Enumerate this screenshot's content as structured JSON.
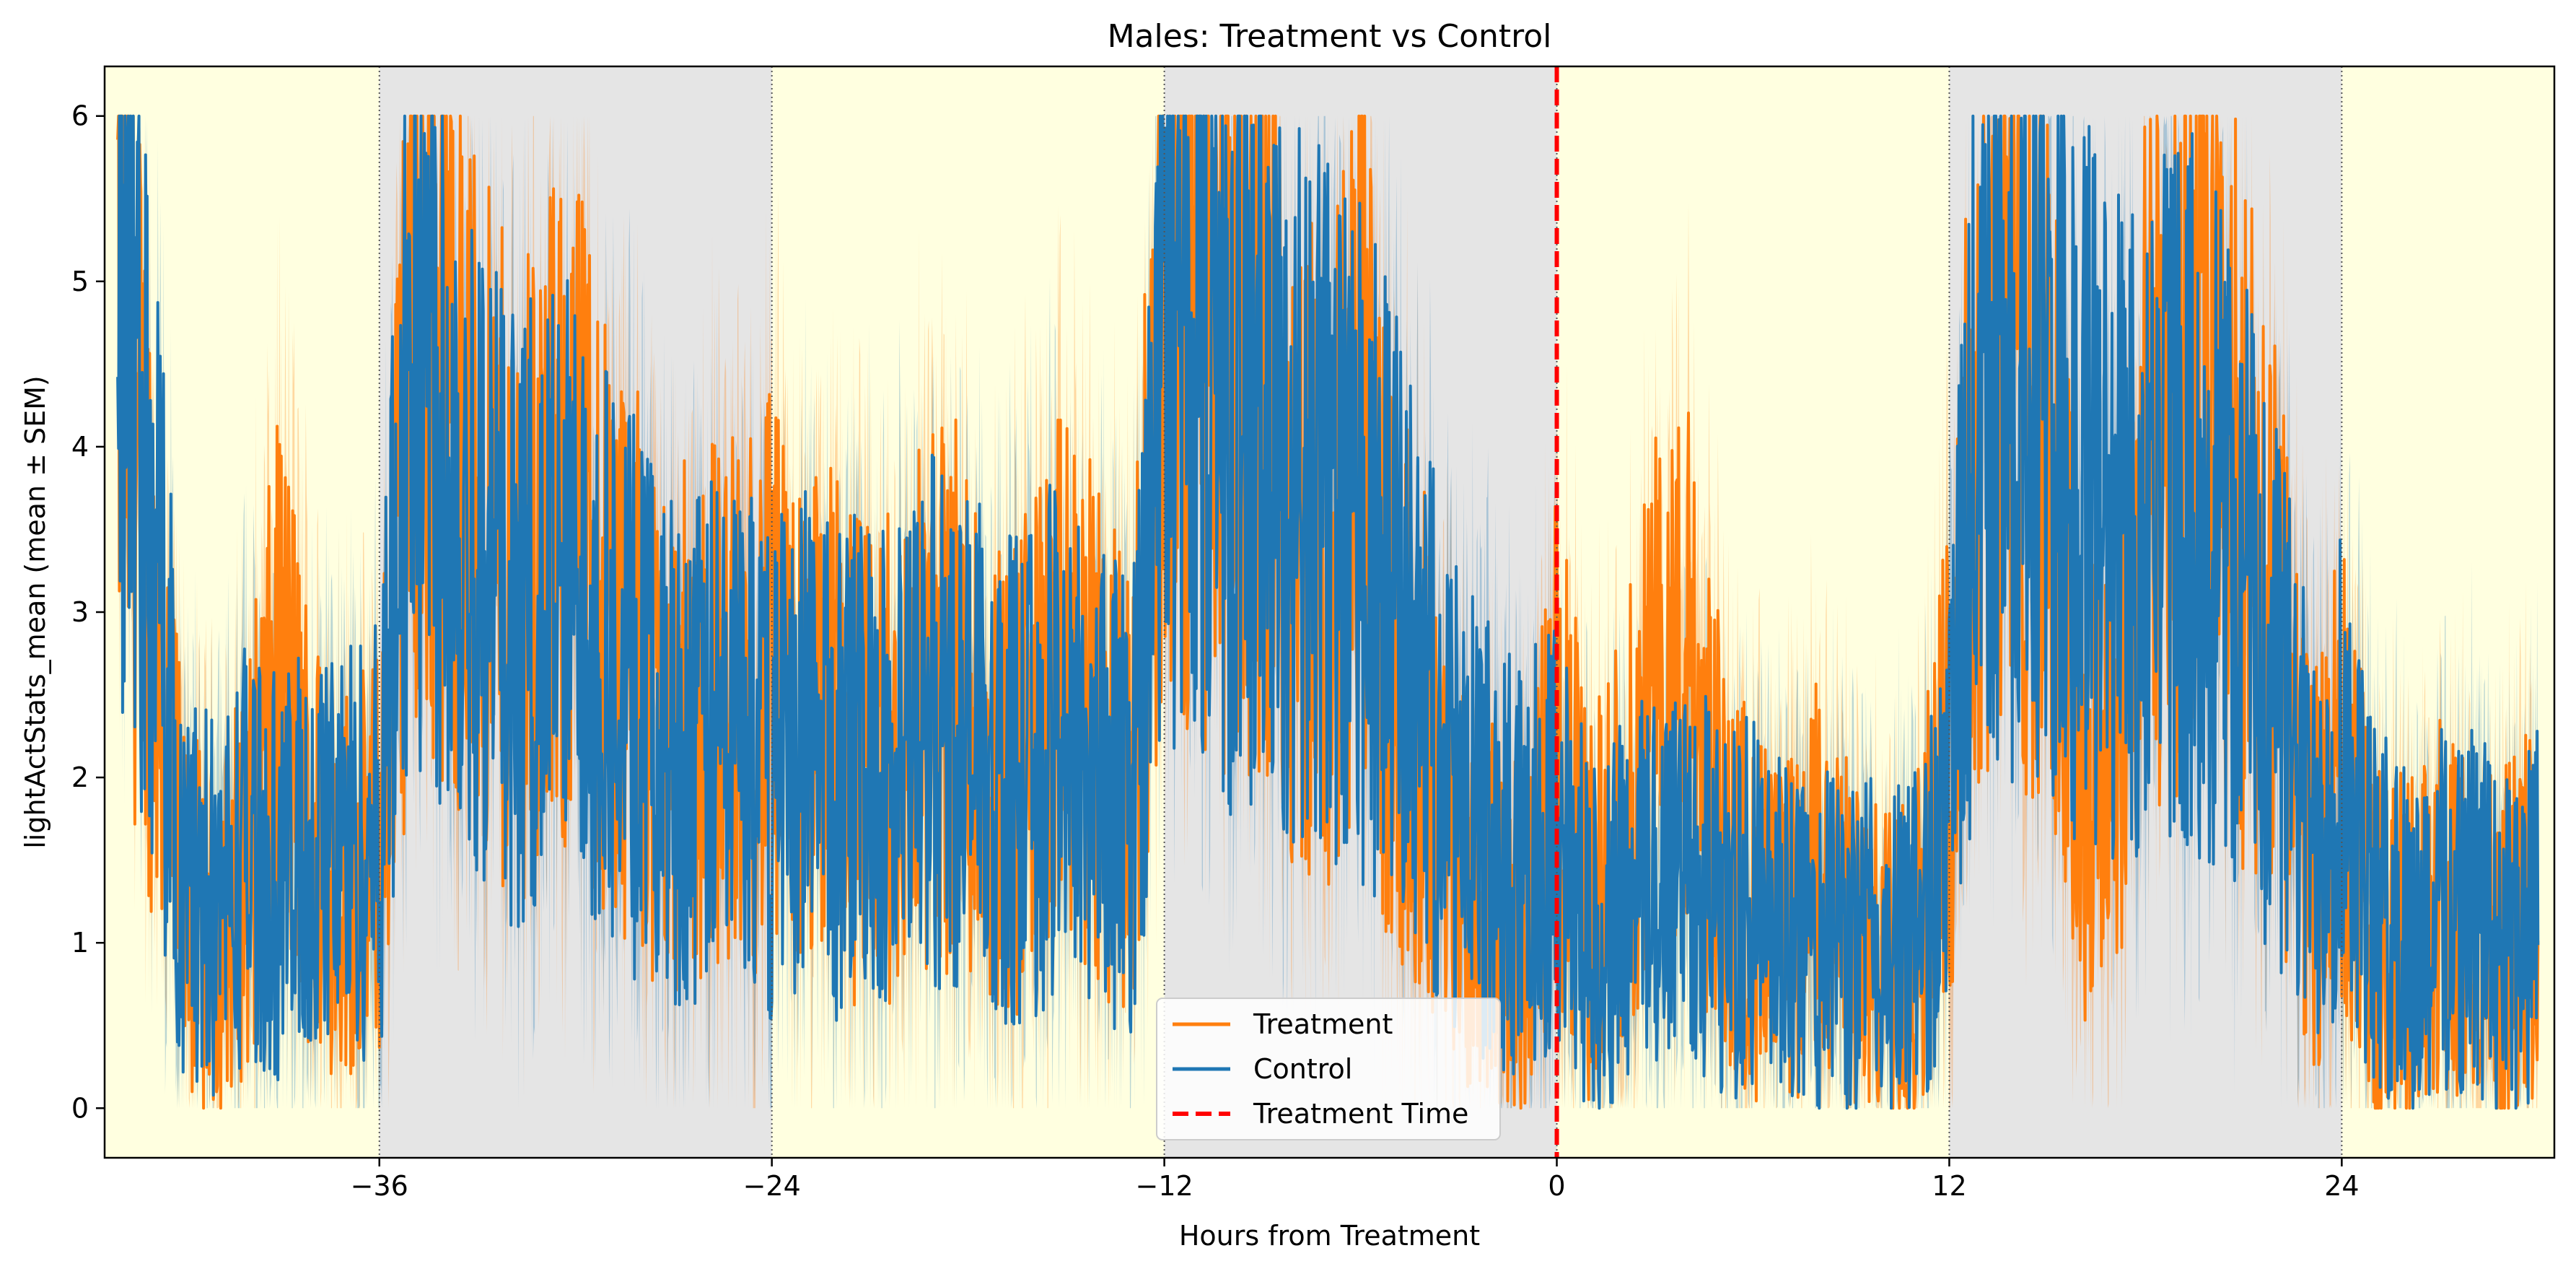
{
  "chart_data": {
    "type": "line",
    "title": "Males: Treatment vs Control",
    "xlabel": "Hours from Treatment",
    "ylabel": "lightActStats_mean (mean ± SEM)",
    "xlim": [
      -44.4,
      30.5
    ],
    "ylim": [
      -0.3,
      6.3
    ],
    "xticks": [
      -36,
      -24,
      -12,
      0,
      12,
      24
    ],
    "yticks": [
      0,
      1,
      2,
      3,
      4,
      5,
      6
    ],
    "grid": false,
    "legend_position": "lower center",
    "light_dark_periods": [
      {
        "start": -44.4,
        "end": -36,
        "phase": "light"
      },
      {
        "start": -36,
        "end": -24,
        "phase": "dark"
      },
      {
        "start": -24,
        "end": -12,
        "phase": "light"
      },
      {
        "start": -12,
        "end": 0,
        "phase": "dark"
      },
      {
        "start": 0,
        "end": 12,
        "phase": "light"
      },
      {
        "start": 12,
        "end": 24,
        "phase": "dark"
      },
      {
        "start": 24,
        "end": 30.5,
        "phase": "light"
      }
    ],
    "colors": {
      "light_period": "#ffffe0",
      "dark_period": "#e5e5e5",
      "treatment": "#ff7f0e",
      "control": "#1f77b4",
      "treatment_time": "#ff0000"
    },
    "treatment_time": 0,
    "series": [
      {
        "name": "Treatment",
        "color": "#ff7f0e",
        "x": [
          -44,
          -43,
          -42,
          -41,
          -40,
          -39,
          -38,
          -37,
          -36,
          -35,
          -34,
          -33,
          -32,
          -31,
          -30,
          -29,
          -28,
          -27,
          -26,
          -25,
          -24,
          -23,
          -22,
          -21,
          -20,
          -19,
          -18,
          -17,
          -16,
          -15,
          -14,
          -13,
          -12,
          -11,
          -10,
          -9,
          -8,
          -7,
          -6,
          -5,
          -4,
          -3,
          -2,
          -1,
          0,
          1,
          2,
          3,
          4,
          5,
          6,
          7,
          8,
          9,
          10,
          11,
          12,
          13,
          14,
          15,
          16,
          17,
          18,
          19,
          20,
          21,
          22,
          23,
          24,
          25,
          26,
          27,
          28,
          29,
          30
        ],
        "y": [
          5.0,
          3.2,
          1.2,
          1.0,
          1.5,
          2.6,
          1.6,
          1.4,
          1.5,
          4.8,
          4.5,
          3.6,
          3.2,
          3.4,
          3.6,
          3.0,
          2.6,
          2.2,
          2.5,
          2.4,
          2.6,
          2.2,
          2.4,
          2.0,
          2.2,
          2.6,
          2.4,
          2.0,
          2.2,
          2.6,
          2.2,
          1.9,
          5.0,
          5.0,
          4.4,
          4.6,
          3.6,
          3.2,
          4.2,
          2.6,
          2.2,
          1.4,
          1.2,
          1.0,
          2.2,
          1.2,
          1.6,
          2.4,
          2.6,
          1.6,
          1.2,
          1.0,
          1.4,
          1.0,
          0.8,
          1.0,
          2.2,
          4.6,
          4.4,
          4.0,
          2.0,
          2.2,
          3.8,
          4.4,
          4.2,
          3.6,
          2.8,
          1.4,
          2.0,
          1.0,
          1.0,
          1.2,
          1.0,
          1.0,
          1.2
        ],
        "sem": [
          0.7,
          0.9,
          0.9,
          0.8,
          1.0,
          1.1,
          1.0,
          0.9,
          0.9,
          1.0,
          1.0,
          1.0,
          1.1,
          1.1,
          1.1,
          1.0,
          1.1,
          1.0,
          1.0,
          1.1,
          1.1,
          1.0,
          1.1,
          1.0,
          1.1,
          1.1,
          1.0,
          1.0,
          1.1,
          1.1,
          1.0,
          1.0,
          0.9,
          0.9,
          1.0,
          1.0,
          1.1,
          1.0,
          1.0,
          1.1,
          1.0,
          0.9,
          0.9,
          0.8,
          1.0,
          0.8,
          0.9,
          1.1,
          1.0,
          0.9,
          0.8,
          0.8,
          0.9,
          0.8,
          0.7,
          0.8,
          1.0,
          1.0,
          1.0,
          1.1,
          1.0,
          1.0,
          1.0,
          1.0,
          1.0,
          1.0,
          1.0,
          0.9,
          1.0,
          0.8,
          0.8,
          0.8,
          0.8,
          0.8,
          0.8
        ]
      },
      {
        "name": "Control",
        "color": "#1f77b4",
        "x": [
          -44,
          -43,
          -42,
          -41,
          -40,
          -39,
          -38,
          -37,
          -36,
          -35,
          -34,
          -33,
          -32,
          -31,
          -30,
          -29,
          -28,
          -27,
          -26,
          -25,
          -24,
          -23,
          -22,
          -21,
          -20,
          -19,
          -18,
          -17,
          -16,
          -15,
          -14,
          -13,
          -12,
          -11,
          -10,
          -9,
          -8,
          -7,
          -6,
          -5,
          -4,
          -3,
          -2,
          -1,
          0,
          1,
          2,
          3,
          4,
          5,
          6,
          7,
          8,
          9,
          10,
          11,
          12,
          13,
          14,
          15,
          16,
          17,
          18,
          19,
          20,
          21,
          22,
          23,
          24,
          25,
          26,
          27,
          28,
          29,
          30
        ],
        "y": [
          5.4,
          3.6,
          1.4,
          1.2,
          1.6,
          1.4,
          1.5,
          1.6,
          1.6,
          4.8,
          4.2,
          3.4,
          3.0,
          3.0,
          3.2,
          2.8,
          2.4,
          2.2,
          2.2,
          2.4,
          2.0,
          2.4,
          2.0,
          2.2,
          2.0,
          2.4,
          2.2,
          2.0,
          2.0,
          2.4,
          2.0,
          1.8,
          4.8,
          4.8,
          4.2,
          4.0,
          3.8,
          3.6,
          3.4,
          3.0,
          2.4,
          1.8,
          1.6,
          1.4,
          1.8,
          1.0,
          1.2,
          1.4,
          1.6,
          1.2,
          1.2,
          1.0,
          1.0,
          1.0,
          0.9,
          1.0,
          1.8,
          4.8,
          4.4,
          4.2,
          3.8,
          3.6,
          3.6,
          3.8,
          3.6,
          3.2,
          2.6,
          1.6,
          2.2,
          1.2,
          1.0,
          1.2,
          1.2,
          1.0,
          1.2
        ],
        "sem": [
          0.6,
          0.8,
          0.8,
          0.8,
          0.9,
          0.9,
          0.9,
          0.9,
          0.9,
          0.9,
          1.0,
          1.0,
          1.0,
          1.0,
          1.0,
          1.0,
          1.0,
          1.0,
          1.0,
          1.0,
          1.0,
          1.0,
          1.0,
          1.0,
          1.0,
          1.0,
          1.0,
          1.0,
          1.0,
          1.0,
          1.0,
          0.9,
          0.9,
          0.9,
          0.9,
          1.0,
          1.0,
          1.0,
          1.0,
          1.0,
          0.9,
          0.9,
          0.9,
          0.8,
          0.9,
          0.8,
          0.8,
          0.9,
          0.9,
          0.8,
          0.8,
          0.8,
          0.8,
          0.8,
          0.7,
          0.8,
          0.9,
          0.9,
          0.9,
          1.0,
          1.0,
          1.0,
          1.0,
          1.0,
          1.0,
          1.0,
          1.0,
          0.9,
          1.0,
          0.8,
          0.8,
          0.8,
          0.8,
          0.8,
          0.8
        ]
      }
    ],
    "legend": {
      "entries": [
        {
          "label": "Treatment",
          "color": "#ff7f0e",
          "style": "solid"
        },
        {
          "label": "Control",
          "color": "#1f77b4",
          "style": "solid"
        },
        {
          "label": "Treatment Time",
          "color": "#ff0000",
          "style": "dashed"
        }
      ]
    }
  }
}
